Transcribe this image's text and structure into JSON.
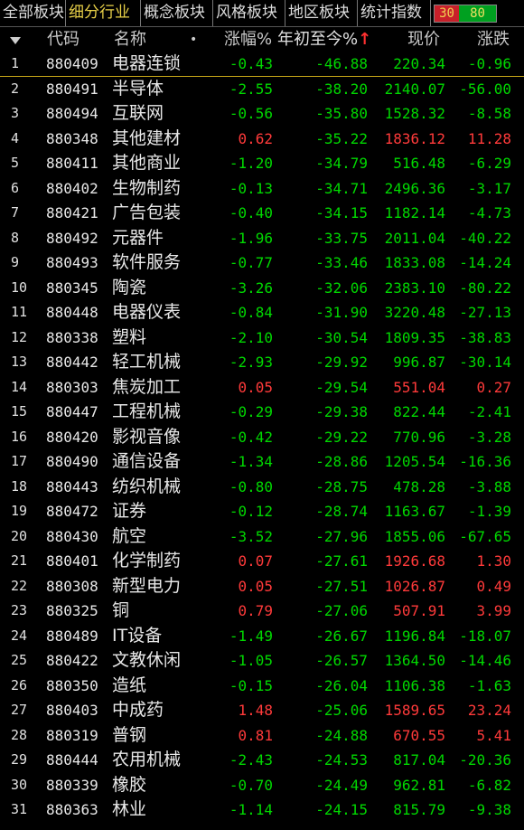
{
  "tabs": [
    {
      "label": "全部板块",
      "active": false
    },
    {
      "label": "细分行业",
      "active": true
    },
    {
      "label": "概念板块",
      "active": false
    },
    {
      "label": "风格板块",
      "active": false
    },
    {
      "label": "地区板块",
      "active": false
    },
    {
      "label": "统计指数",
      "active": false
    }
  ],
  "stats": {
    "up": "30",
    "down": "80"
  },
  "colors": {
    "up": "#ff3a3a",
    "down": "#00d800",
    "active_tab": "#e8d048"
  },
  "header": {
    "sort_icon": "sort-down-icon",
    "code": "代码",
    "name": "名称",
    "dot": "•",
    "chg": "涨幅%",
    "ytd": "年初至今%",
    "ytd_arrow": "↑",
    "price": "现价",
    "diff": "涨跌"
  },
  "rows": [
    {
      "idx": "1",
      "code": "880409",
      "name": "电器连锁",
      "chg": "-0.43",
      "ytd": "-46.88",
      "price": "220.34",
      "diff": "-0.96",
      "dir": "down"
    },
    {
      "idx": "2",
      "code": "880491",
      "name": "半导体",
      "chg": "-2.55",
      "ytd": "-38.20",
      "price": "2140.07",
      "diff": "-56.00",
      "dir": "down"
    },
    {
      "idx": "3",
      "code": "880494",
      "name": "互联网",
      "chg": "-0.56",
      "ytd": "-35.80",
      "price": "1528.32",
      "diff": "-8.58",
      "dir": "down"
    },
    {
      "idx": "4",
      "code": "880348",
      "name": "其他建材",
      "chg": "0.62",
      "ytd": "-35.22",
      "price": "1836.12",
      "diff": "11.28",
      "dir": "up"
    },
    {
      "idx": "5",
      "code": "880411",
      "name": "其他商业",
      "chg": "-1.20",
      "ytd": "-34.79",
      "price": "516.48",
      "diff": "-6.29",
      "dir": "down"
    },
    {
      "idx": "6",
      "code": "880402",
      "name": "生物制药",
      "chg": "-0.13",
      "ytd": "-34.71",
      "price": "2496.36",
      "diff": "-3.17",
      "dir": "down"
    },
    {
      "idx": "7",
      "code": "880421",
      "name": "广告包装",
      "chg": "-0.40",
      "ytd": "-34.15",
      "price": "1182.14",
      "diff": "-4.73",
      "dir": "down"
    },
    {
      "idx": "8",
      "code": "880492",
      "name": "元器件",
      "chg": "-1.96",
      "ytd": "-33.75",
      "price": "2011.04",
      "diff": "-40.22",
      "dir": "down"
    },
    {
      "idx": "9",
      "code": "880493",
      "name": "软件服务",
      "chg": "-0.77",
      "ytd": "-33.46",
      "price": "1833.08",
      "diff": "-14.24",
      "dir": "down"
    },
    {
      "idx": "10",
      "code": "880345",
      "name": "陶瓷",
      "chg": "-3.26",
      "ytd": "-32.06",
      "price": "2383.10",
      "diff": "-80.22",
      "dir": "down"
    },
    {
      "idx": "11",
      "code": "880448",
      "name": "电器仪表",
      "chg": "-0.84",
      "ytd": "-31.90",
      "price": "3220.48",
      "diff": "-27.13",
      "dir": "down"
    },
    {
      "idx": "12",
      "code": "880338",
      "name": "塑料",
      "chg": "-2.10",
      "ytd": "-30.54",
      "price": "1809.35",
      "diff": "-38.83",
      "dir": "down"
    },
    {
      "idx": "13",
      "code": "880442",
      "name": "轻工机械",
      "chg": "-2.93",
      "ytd": "-29.92",
      "price": "996.87",
      "diff": "-30.14",
      "dir": "down"
    },
    {
      "idx": "14",
      "code": "880303",
      "name": "焦炭加工",
      "chg": "0.05",
      "ytd": "-29.54",
      "price": "551.04",
      "diff": "0.27",
      "dir": "up"
    },
    {
      "idx": "15",
      "code": "880447",
      "name": "工程机械",
      "chg": "-0.29",
      "ytd": "-29.38",
      "price": "822.44",
      "diff": "-2.41",
      "dir": "down"
    },
    {
      "idx": "16",
      "code": "880420",
      "name": "影视音像",
      "chg": "-0.42",
      "ytd": "-29.22",
      "price": "770.96",
      "diff": "-3.28",
      "dir": "down"
    },
    {
      "idx": "17",
      "code": "880490",
      "name": "通信设备",
      "chg": "-1.34",
      "ytd": "-28.86",
      "price": "1205.54",
      "diff": "-16.36",
      "dir": "down"
    },
    {
      "idx": "18",
      "code": "880443",
      "name": "纺织机械",
      "chg": "-0.80",
      "ytd": "-28.75",
      "price": "478.28",
      "diff": "-3.88",
      "dir": "down"
    },
    {
      "idx": "19",
      "code": "880472",
      "name": "证券",
      "chg": "-0.12",
      "ytd": "-28.74",
      "price": "1163.67",
      "diff": "-1.39",
      "dir": "down"
    },
    {
      "idx": "20",
      "code": "880430",
      "name": "航空",
      "chg": "-3.52",
      "ytd": "-27.96",
      "price": "1855.06",
      "diff": "-67.65",
      "dir": "down"
    },
    {
      "idx": "21",
      "code": "880401",
      "name": "化学制药",
      "chg": "0.07",
      "ytd": "-27.61",
      "price": "1926.68",
      "diff": "1.30",
      "dir": "up"
    },
    {
      "idx": "22",
      "code": "880308",
      "name": "新型电力",
      "chg": "0.05",
      "ytd": "-27.51",
      "price": "1026.87",
      "diff": "0.49",
      "dir": "up"
    },
    {
      "idx": "23",
      "code": "880325",
      "name": "铜",
      "chg": "0.79",
      "ytd": "-27.06",
      "price": "507.91",
      "diff": "3.99",
      "dir": "up"
    },
    {
      "idx": "24",
      "code": "880489",
      "name": "IT设备",
      "chg": "-1.49",
      "ytd": "-26.67",
      "price": "1196.84",
      "diff": "-18.07",
      "dir": "down"
    },
    {
      "idx": "25",
      "code": "880422",
      "name": "文教休闲",
      "chg": "-1.05",
      "ytd": "-26.57",
      "price": "1364.50",
      "diff": "-14.46",
      "dir": "down"
    },
    {
      "idx": "26",
      "code": "880350",
      "name": "造纸",
      "chg": "-0.15",
      "ytd": "-26.04",
      "price": "1106.38",
      "diff": "-1.63",
      "dir": "down"
    },
    {
      "idx": "27",
      "code": "880403",
      "name": "中成药",
      "chg": "1.48",
      "ytd": "-25.06",
      "price": "1589.65",
      "diff": "23.24",
      "dir": "up"
    },
    {
      "idx": "28",
      "code": "880319",
      "name": "普钢",
      "chg": "0.81",
      "ytd": "-24.88",
      "price": "670.55",
      "diff": "5.41",
      "dir": "up"
    },
    {
      "idx": "29",
      "code": "880444",
      "name": "农用机械",
      "chg": "-2.43",
      "ytd": "-24.53",
      "price": "817.04",
      "diff": "-20.36",
      "dir": "down"
    },
    {
      "idx": "30",
      "code": "880339",
      "name": "橡胶",
      "chg": "-0.70",
      "ytd": "-24.49",
      "price": "962.81",
      "diff": "-6.82",
      "dir": "down"
    },
    {
      "idx": "31",
      "code": "880363",
      "name": "林业",
      "chg": "-1.14",
      "ytd": "-24.15",
      "price": "815.79",
      "diff": "-9.38",
      "dir": "down"
    }
  ]
}
